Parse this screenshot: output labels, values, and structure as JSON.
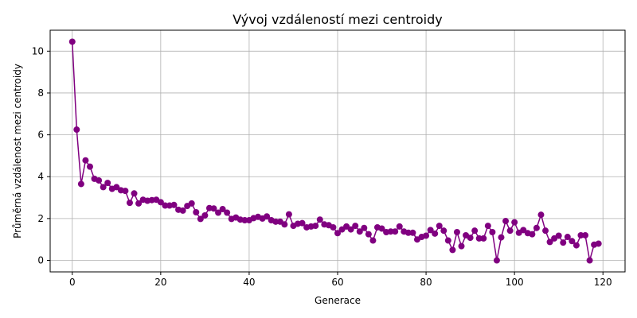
{
  "chart_data": {
    "type": "line",
    "title": "Vývoj vzdáleností mezi centroidy",
    "xlabel": "Generace",
    "ylabel": "Průměrná vzdálenost mezi centroidy",
    "xlim": [
      -5,
      125
    ],
    "ylim": [
      -0.55,
      11.0
    ],
    "xticks": [
      0,
      20,
      40,
      60,
      80,
      100,
      120
    ],
    "yticks": [
      0,
      2,
      4,
      6,
      8,
      10
    ],
    "grid": true,
    "colors": {
      "series": "#800080"
    },
    "series": [
      {
        "marker": "circle",
        "x": [
          0,
          1,
          2,
          3,
          4,
          5,
          6,
          7,
          8,
          9,
          10,
          11,
          12,
          13,
          14,
          15,
          16,
          17,
          18,
          19,
          20,
          21,
          22,
          23,
          24,
          25,
          26,
          27,
          28,
          29,
          30,
          31,
          32,
          33,
          34,
          35,
          36,
          37,
          38,
          39,
          40,
          41,
          42,
          43,
          44,
          45,
          46,
          47,
          48,
          49,
          50,
          51,
          52,
          53,
          54,
          55,
          56,
          57,
          58,
          59,
          60,
          61,
          62,
          63,
          64,
          65,
          66,
          67,
          68,
          69,
          70,
          71,
          72,
          73,
          74,
          75,
          76,
          77,
          78,
          79,
          80,
          81,
          82,
          83,
          84,
          85,
          86,
          87,
          88,
          89,
          90,
          91,
          92,
          93,
          94,
          95,
          96,
          97,
          98,
          99,
          100,
          101,
          102,
          103,
          104,
          105,
          106,
          107,
          108,
          109,
          110,
          111,
          112,
          113,
          114,
          115,
          116,
          117,
          118,
          119
        ],
        "y": [
          10.45,
          6.25,
          3.65,
          4.78,
          4.48,
          3.9,
          3.82,
          3.5,
          3.7,
          3.42,
          3.5,
          3.35,
          3.32,
          2.75,
          3.2,
          2.72,
          2.9,
          2.85,
          2.88,
          2.9,
          2.78,
          2.62,
          2.62,
          2.65,
          2.42,
          2.38,
          2.6,
          2.72,
          2.3,
          1.98,
          2.15,
          2.5,
          2.48,
          2.28,
          2.45,
          2.28,
          1.98,
          2.05,
          1.95,
          1.92,
          1.92,
          2.02,
          2.08,
          2.0,
          2.1,
          1.92,
          1.85,
          1.85,
          1.72,
          2.2,
          1.65,
          1.75,
          1.78,
          1.58,
          1.62,
          1.65,
          1.95,
          1.72,
          1.68,
          1.58,
          1.3,
          1.48,
          1.62,
          1.48,
          1.65,
          1.38,
          1.55,
          1.25,
          0.95,
          1.58,
          1.52,
          1.35,
          1.38,
          1.38,
          1.62,
          1.38,
          1.32,
          1.32,
          1.0,
          1.12,
          1.18,
          1.45,
          1.28,
          1.65,
          1.42,
          0.95,
          0.5,
          1.35,
          0.68,
          1.2,
          1.08,
          1.42,
          1.05,
          1.05,
          1.65,
          1.35,
          0.0,
          1.1,
          1.88,
          1.42,
          1.82,
          1.32,
          1.45,
          1.3,
          1.25,
          1.55,
          2.18,
          1.42,
          0.88,
          1.05,
          1.18,
          0.85,
          1.12,
          0.92,
          0.72,
          1.2,
          1.2,
          0.0,
          0.75,
          0.8
        ]
      }
    ]
  }
}
